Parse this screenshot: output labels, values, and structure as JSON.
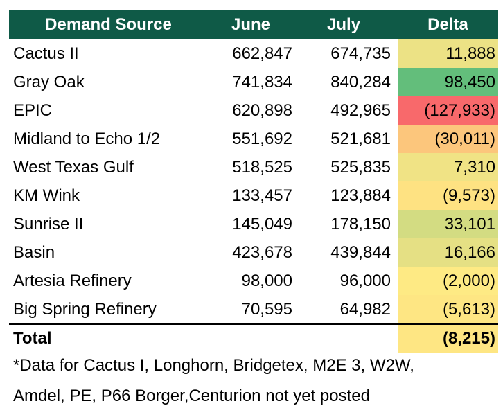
{
  "colors": {
    "header_bg": "#0f5a47",
    "header_text": "#ffffff"
  },
  "table": {
    "headers": {
      "source": "Demand Source",
      "june": "June",
      "july": "July",
      "delta": "Delta"
    },
    "rows": [
      {
        "source": "Cactus II",
        "june": "662,847",
        "july": "674,735",
        "delta": "11,888",
        "delta_color": "#ece285"
      },
      {
        "source": "Gray Oak",
        "june": "741,834",
        "july": "840,284",
        "delta": "98,450",
        "delta_color": "#63be7b"
      },
      {
        "source": "EPIC",
        "june": "620,898",
        "july": "492,965",
        "delta": "(127,933)",
        "delta_color": "#f8696b"
      },
      {
        "source": "Midland to Echo 1/2",
        "june": "551,692",
        "july": "521,681",
        "delta": "(30,011)",
        "delta_color": "#fcc67c"
      },
      {
        "source": "West Texas Gulf",
        "june": "518,525",
        "july": "525,835",
        "delta": "7,310",
        "delta_color": "#f0e385"
      },
      {
        "source": "KM Wink",
        "june": "133,457",
        "july": "123,884",
        "delta": "(9,573)",
        "delta_color": "#fee282"
      },
      {
        "source": "Sunrise II",
        "june": "145,049",
        "july": "178,150",
        "delta": "33,101",
        "delta_color": "#d3dc82"
      },
      {
        "source": "Basin",
        "june": "423,678",
        "july": "439,844",
        "delta": "16,166",
        "delta_color": "#e5e084"
      },
      {
        "source": "Artesia Refinery",
        "june": "98,000",
        "july": "96,000",
        "delta": "(2,000)",
        "delta_color": "#feea84"
      },
      {
        "source": "Big Spring Refinery",
        "june": "70,595",
        "july": "64,982",
        "delta": "(5,613)",
        "delta_color": "#fee683"
      }
    ],
    "total": {
      "label": "Total",
      "delta": "(8,215)",
      "delta_color": "#fee683"
    }
  },
  "footnote": {
    "line1": "*Data for Cactus I, Longhorn, Bridgetex, M2E 3, W2W,",
    "line2": "Amdel, PE, P66 Borger,Centurion not yet posted"
  }
}
